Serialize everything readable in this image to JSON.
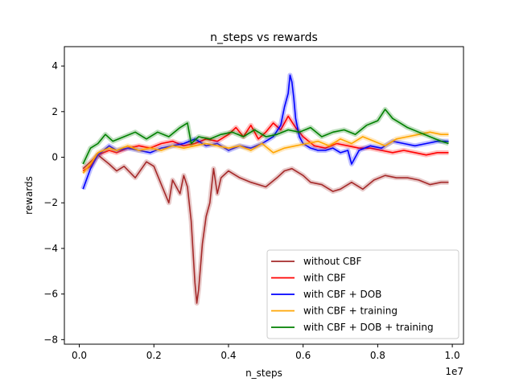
{
  "chart_data": {
    "type": "line",
    "title": "n_steps vs rewards",
    "xlabel": "n_steps",
    "ylabel": "rewards",
    "x_offset_label": "1e7",
    "xlim": [
      -0.04,
      1.03
    ],
    "ylim": [
      -8.2,
      4.85
    ],
    "xticks": [
      {
        "value": 0.0,
        "label": "0.0"
      },
      {
        "value": 0.2,
        "label": "0.2"
      },
      {
        "value": 0.4,
        "label": "0.4"
      },
      {
        "value": 0.6,
        "label": "0.6"
      },
      {
        "value": 0.8,
        "label": "0.8"
      },
      {
        "value": 1.0,
        "label": "1.0"
      }
    ],
    "yticks": [
      {
        "value": 4,
        "label": "4"
      },
      {
        "value": 2,
        "label": "2"
      },
      {
        "value": 0,
        "label": "0"
      },
      {
        "value": -2,
        "label": "−2"
      },
      {
        "value": -4,
        "label": "−4"
      },
      {
        "value": -6,
        "label": "−6"
      },
      {
        "value": -8,
        "label": "−8"
      }
    ],
    "grid": false,
    "legend_position": "lower-right",
    "series": [
      {
        "name": "without CBF",
        "color": "#a52a2a",
        "x": [
          0.01,
          0.03,
          0.05,
          0.08,
          0.1,
          0.12,
          0.15,
          0.18,
          0.2,
          0.22,
          0.24,
          0.25,
          0.27,
          0.28,
          0.29,
          0.3,
          0.31,
          0.315,
          0.32,
          0.33,
          0.34,
          0.35,
          0.36,
          0.37,
          0.38,
          0.4,
          0.43,
          0.46,
          0.5,
          0.53,
          0.55,
          0.57,
          0.6,
          0.62,
          0.65,
          0.68,
          0.7,
          0.73,
          0.76,
          0.79,
          0.82,
          0.85,
          0.88,
          0.91,
          0.94,
          0.97,
          0.99
        ],
        "values": [
          -0.5,
          -0.2,
          0.1,
          -0.3,
          -0.6,
          -0.4,
          -0.9,
          -0.2,
          -0.4,
          -1.2,
          -2.0,
          -1.0,
          -1.6,
          -0.8,
          -1.3,
          -2.8,
          -5.5,
          -6.4,
          -5.8,
          -3.8,
          -2.6,
          -2.0,
          -0.5,
          -1.6,
          -0.9,
          -0.6,
          -0.9,
          -1.1,
          -1.3,
          -0.9,
          -0.6,
          -0.5,
          -0.8,
          -1.1,
          -1.2,
          -1.5,
          -1.4,
          -1.1,
          -1.4,
          -1.0,
          -0.8,
          -0.9,
          -0.9,
          -1.0,
          -1.2,
          -1.1,
          -1.1
        ]
      },
      {
        "name": "with CBF",
        "color": "#ff0000",
        "x": [
          0.01,
          0.03,
          0.05,
          0.08,
          0.1,
          0.13,
          0.16,
          0.19,
          0.22,
          0.25,
          0.28,
          0.31,
          0.34,
          0.37,
          0.4,
          0.42,
          0.44,
          0.46,
          0.48,
          0.5,
          0.52,
          0.54,
          0.56,
          0.58,
          0.6,
          0.63,
          0.66,
          0.69,
          0.72,
          0.75,
          0.78,
          0.81,
          0.84,
          0.87,
          0.9,
          0.93,
          0.96,
          0.99
        ],
        "values": [
          -0.6,
          -0.4,
          0.1,
          0.3,
          0.2,
          0.4,
          0.5,
          0.4,
          0.6,
          0.7,
          0.5,
          0.6,
          0.8,
          0.7,
          1.0,
          1.3,
          0.9,
          1.4,
          0.8,
          1.1,
          1.5,
          1.2,
          1.8,
          1.3,
          0.9,
          0.5,
          0.4,
          0.6,
          0.5,
          0.4,
          0.4,
          0.3,
          0.2,
          0.3,
          0.2,
          0.1,
          0.2,
          0.2
        ]
      },
      {
        "name": "with CBF + DOB",
        "color": "#0000ff",
        "x": [
          0.01,
          0.03,
          0.05,
          0.08,
          0.1,
          0.13,
          0.16,
          0.19,
          0.22,
          0.25,
          0.28,
          0.31,
          0.34,
          0.37,
          0.4,
          0.43,
          0.46,
          0.49,
          0.52,
          0.54,
          0.55,
          0.56,
          0.565,
          0.57,
          0.575,
          0.58,
          0.59,
          0.6,
          0.62,
          0.64,
          0.66,
          0.68,
          0.7,
          0.72,
          0.73,
          0.75,
          0.78,
          0.81,
          0.84,
          0.87,
          0.9,
          0.93,
          0.96,
          0.99
        ],
        "values": [
          -1.4,
          -0.5,
          0.1,
          0.5,
          0.3,
          0.4,
          0.3,
          0.2,
          0.4,
          0.5,
          0.6,
          0.8,
          0.5,
          0.6,
          0.3,
          0.5,
          0.4,
          0.6,
          0.9,
          1.4,
          2.2,
          2.8,
          3.6,
          3.3,
          2.6,
          1.7,
          0.9,
          0.6,
          0.4,
          0.3,
          0.3,
          0.4,
          0.2,
          0.3,
          -0.3,
          0.3,
          0.5,
          0.4,
          0.7,
          0.6,
          0.5,
          0.6,
          0.7,
          0.7
        ]
      },
      {
        "name": "with CBF + training",
        "color": "#ffa500",
        "x": [
          0.01,
          0.03,
          0.05,
          0.08,
          0.1,
          0.13,
          0.16,
          0.19,
          0.22,
          0.25,
          0.28,
          0.31,
          0.34,
          0.37,
          0.4,
          0.43,
          0.46,
          0.49,
          0.52,
          0.55,
          0.58,
          0.61,
          0.64,
          0.67,
          0.7,
          0.73,
          0.76,
          0.79,
          0.82,
          0.85,
          0.88,
          0.91,
          0.94,
          0.97,
          0.99
        ],
        "values": [
          -0.7,
          -0.3,
          0.2,
          0.4,
          0.3,
          0.5,
          0.3,
          0.4,
          0.3,
          0.5,
          0.4,
          0.5,
          0.6,
          0.5,
          0.4,
          0.5,
          0.3,
          0.6,
          0.2,
          0.4,
          0.5,
          0.6,
          0.7,
          0.5,
          0.8,
          0.6,
          0.9,
          0.7,
          0.5,
          0.8,
          0.9,
          1.0,
          1.1,
          1.0,
          1.0
        ]
      },
      {
        "name": "with CBF + DOB + training",
        "color": "#008000",
        "x": [
          0.01,
          0.03,
          0.05,
          0.07,
          0.09,
          0.12,
          0.15,
          0.18,
          0.21,
          0.24,
          0.27,
          0.29,
          0.3,
          0.32,
          0.35,
          0.38,
          0.41,
          0.44,
          0.47,
          0.5,
          0.53,
          0.56,
          0.59,
          0.62,
          0.65,
          0.68,
          0.71,
          0.74,
          0.77,
          0.8,
          0.82,
          0.84,
          0.86,
          0.88,
          0.91,
          0.94,
          0.97,
          0.99
        ],
        "values": [
          -0.3,
          0.4,
          0.6,
          1.0,
          0.7,
          0.9,
          1.1,
          0.8,
          1.1,
          0.9,
          1.3,
          1.5,
          0.6,
          0.9,
          0.8,
          1.0,
          1.1,
          0.9,
          1.2,
          0.9,
          1.0,
          1.2,
          1.1,
          1.3,
          0.9,
          1.1,
          1.2,
          1.0,
          1.4,
          1.6,
          2.1,
          1.7,
          1.5,
          1.3,
          1.1,
          0.9,
          0.7,
          0.6
        ]
      }
    ]
  }
}
